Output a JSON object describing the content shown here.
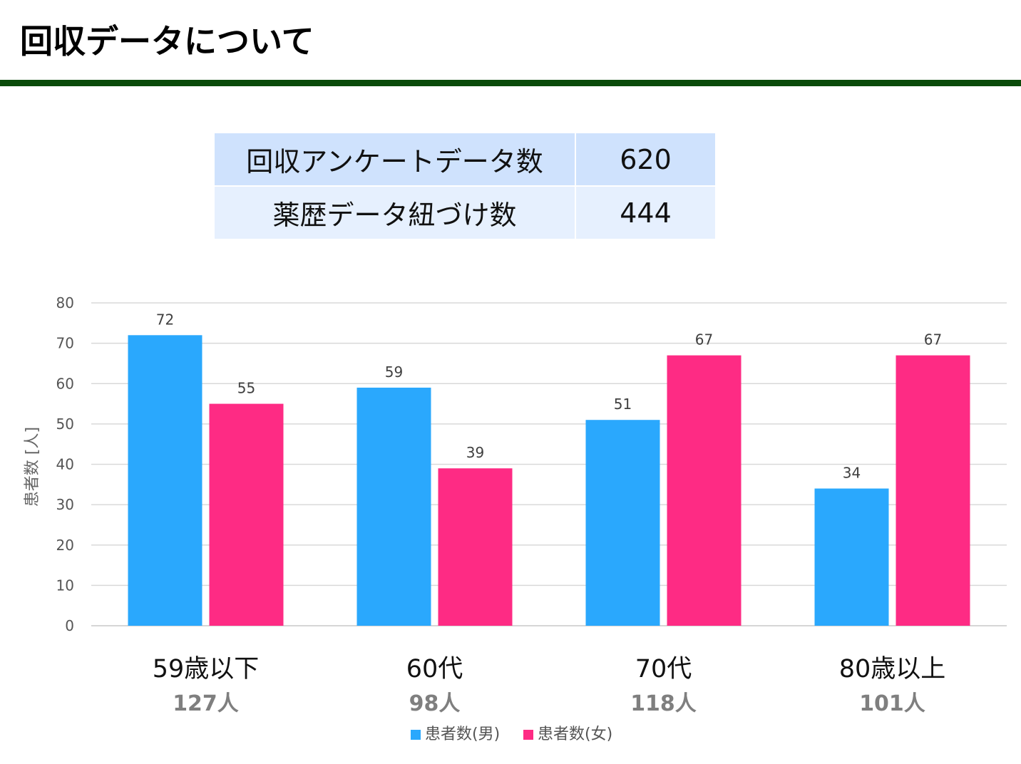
{
  "page": {
    "title": "回収データについて"
  },
  "summary_table": {
    "rows": [
      {
        "label": "回収アンケートデータ数",
        "value": "620"
      },
      {
        "label": "薬歴データ紐づけ数",
        "value": "444"
      }
    ]
  },
  "chart_data": {
    "type": "bar",
    "categories": [
      "59歳以下",
      "60代",
      "70代",
      "80歳以上"
    ],
    "category_totals": [
      "127人",
      "98人",
      "118人",
      "101人"
    ],
    "series": [
      {
        "name": "患者数(男)",
        "color": "#2aa8fd",
        "values": [
          72,
          59,
          51,
          34
        ]
      },
      {
        "name": "患者数(女)",
        "color": "#fe2b84",
        "values": [
          55,
          39,
          67,
          67
        ]
      }
    ],
    "ylabel": "患者数 [人]",
    "ylim": [
      0,
      80
    ],
    "yticks": [
      0,
      10,
      20,
      30,
      40,
      50,
      60,
      70,
      80
    ],
    "grid": true,
    "data_labels": true,
    "legend": "bottom"
  }
}
